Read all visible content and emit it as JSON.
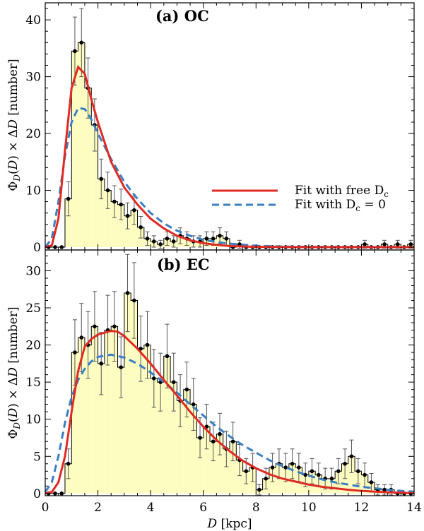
{
  "chart_data": [
    {
      "type": "bar",
      "panel": "top",
      "title": "(a) OC",
      "xlabel": "D [kpc]",
      "ylabel": "Φ_D(D) × ΔD [number]",
      "xlim": [
        0,
        14
      ],
      "ylim": [
        -0.5,
        43
      ],
      "yticks": [
        0,
        10,
        20,
        30,
        40
      ],
      "bin_width": 0.25,
      "centers": [
        0.125,
        0.375,
        0.625,
        0.875,
        1.125,
        1.375,
        1.625,
        1.875,
        2.125,
        2.375,
        2.625,
        2.875,
        3.125,
        3.375,
        3.625,
        3.875,
        4.125,
        4.375,
        4.625,
        4.875,
        5.125,
        5.375,
        5.625,
        5.875,
        6.125,
        6.375,
        6.625,
        6.875,
        7.125,
        7.375,
        7.625,
        7.875,
        8.125,
        8.375,
        8.625,
        8.875,
        9.125,
        9.375,
        9.625,
        9.875,
        10.125,
        10.375,
        10.625,
        10.875,
        11.125,
        11.375,
        11.625,
        11.875,
        12.125,
        12.375,
        12.625,
        12.875,
        13.125,
        13.375,
        13.625,
        13.875
      ],
      "counts": [
        0,
        0,
        0,
        8.5,
        34.5,
        36,
        28,
        21.5,
        12,
        10,
        8,
        7.5,
        5.5,
        6.5,
        3.5,
        1.5,
        1,
        0.5,
        1.5,
        1,
        2,
        1.5,
        1,
        1,
        1.5,
        1.5,
        2,
        1.5,
        0,
        0.5,
        0,
        0,
        0,
        0,
        0,
        0,
        0,
        0,
        0,
        0,
        0,
        0,
        0,
        0,
        0,
        0,
        0,
        0,
        0.5,
        0,
        0,
        0.5,
        0,
        0.5,
        0,
        0.5
      ],
      "errors": [
        0,
        0,
        0,
        3,
        6,
        6,
        5.3,
        4.6,
        3.5,
        3.2,
        2.8,
        2.7,
        2.3,
        2.5,
        1.9,
        1.2,
        1,
        0.7,
        1.2,
        1,
        1.4,
        1.2,
        1,
        1,
        1.2,
        1.2,
        1.4,
        1.2,
        0,
        0.7,
        0,
        0,
        0,
        0,
        0,
        0,
        0,
        0,
        0,
        0,
        0,
        0,
        0,
        0,
        0,
        0,
        0,
        0,
        0.7,
        0,
        0,
        0.7,
        0,
        0.7,
        0,
        0.7
      ],
      "fit_free_dc": [
        [
          0,
          0
        ],
        [
          0.25,
          0.3
        ],
        [
          0.5,
          5
        ],
        [
          0.75,
          17
        ],
        [
          1,
          28
        ],
        [
          1.25,
          31.7
        ],
        [
          1.5,
          30.5
        ],
        [
          1.75,
          26
        ],
        [
          2,
          22
        ],
        [
          2.5,
          15
        ],
        [
          3,
          10.5
        ],
        [
          3.5,
          7.5
        ],
        [
          4,
          5
        ],
        [
          4.5,
          3.3
        ],
        [
          5,
          2
        ],
        [
          5.5,
          1.2
        ],
        [
          6,
          0.7
        ],
        [
          6.5,
          0.4
        ],
        [
          7,
          0.2
        ],
        [
          8,
          0.05
        ],
        [
          10,
          0
        ],
        [
          14,
          0
        ]
      ],
      "fit_dc0": [
        [
          0,
          0
        ],
        [
          0.25,
          1.5
        ],
        [
          0.5,
          8
        ],
        [
          0.75,
          16
        ],
        [
          1,
          22
        ],
        [
          1.25,
          24.5
        ],
        [
          1.5,
          24.3
        ],
        [
          1.75,
          22.5
        ],
        [
          2,
          20
        ],
        [
          2.5,
          15.5
        ],
        [
          3,
          11.5
        ],
        [
          3.5,
          8.5
        ],
        [
          4,
          6
        ],
        [
          4.5,
          4.2
        ],
        [
          5,
          2.9
        ],
        [
          5.5,
          2
        ],
        [
          6,
          1.3
        ],
        [
          6.5,
          0.9
        ],
        [
          7,
          0.6
        ],
        [
          8,
          0.25
        ],
        [
          9,
          0.1
        ],
        [
          10,
          0.05
        ],
        [
          14,
          0
        ]
      ],
      "legend": [
        "Fit with free D_c",
        "Fit with D_c = 0"
      ],
      "legend_position": "center-right"
    },
    {
      "type": "bar",
      "panel": "bottom",
      "title": "(b) EC",
      "xlabel": "D [kpc]",
      "ylabel": "Φ_D(D) × ΔD [number]",
      "xlim": [
        0,
        14
      ],
      "ylim": [
        -0.3,
        32.8
      ],
      "yticks": [
        0,
        5,
        10,
        15,
        20,
        25,
        30
      ],
      "xticks": [
        0,
        2,
        4,
        6,
        8,
        10,
        12,
        14
      ],
      "bin_width": 0.25,
      "centers": [
        0.125,
        0.375,
        0.625,
        0.875,
        1.125,
        1.375,
        1.625,
        1.875,
        2.125,
        2.375,
        2.625,
        2.875,
        3.125,
        3.375,
        3.625,
        3.875,
        4.125,
        4.375,
        4.625,
        4.875,
        5.125,
        5.375,
        5.625,
        5.875,
        6.125,
        6.375,
        6.625,
        6.875,
        7.125,
        7.375,
        7.625,
        7.875,
        8.125,
        8.375,
        8.625,
        8.875,
        9.125,
        9.375,
        9.625,
        9.875,
        10.125,
        10.375,
        10.625,
        10.875,
        11.125,
        11.375,
        11.625,
        11.875,
        12.125,
        12.375,
        12.625,
        12.875,
        13.125,
        13.375,
        13.625,
        13.875
      ],
      "counts": [
        0,
        0,
        0,
        4,
        19,
        21,
        20,
        22.5,
        17.5,
        22,
        22.5,
        17,
        27,
        26,
        19.5,
        20,
        15.5,
        15,
        18.5,
        15,
        12.5,
        14,
        12,
        7.5,
        9,
        7,
        8,
        6,
        7,
        4.5,
        3,
        3.5,
        0.5,
        2,
        3.5,
        4,
        3.5,
        4,
        3.5,
        2.5,
        3,
        2.5,
        2,
        2,
        3,
        4,
        5,
        3,
        2.5,
        1.5,
        0.5,
        0.5,
        0.5,
        0,
        0,
        0
      ],
      "errors": [
        0,
        0,
        0,
        2,
        4.4,
        4.6,
        4.5,
        4.7,
        4.2,
        4.7,
        4.7,
        4.1,
        5.2,
        5.1,
        4.4,
        4.5,
        3.9,
        3.9,
        4.3,
        3.9,
        3.5,
        3.7,
        3.5,
        2.7,
        3,
        2.6,
        2.8,
        2.4,
        2.6,
        2.1,
        1.7,
        1.9,
        0.7,
        1.4,
        1.9,
        2,
        1.9,
        2,
        1.9,
        1.6,
        1.7,
        1.6,
        1.4,
        1.4,
        1.7,
        2,
        2.2,
        1.7,
        1.6,
        1.2,
        0.7,
        0.7,
        0.7,
        0,
        0,
        0
      ],
      "fit_free_dc": [
        [
          0,
          0
        ],
        [
          0.25,
          0.2
        ],
        [
          0.5,
          1.5
        ],
        [
          0.75,
          5
        ],
        [
          1,
          11
        ],
        [
          1.25,
          16.5
        ],
        [
          1.5,
          19.8
        ],
        [
          1.75,
          20.8
        ],
        [
          2,
          21.4
        ],
        [
          2.5,
          21.9
        ],
        [
          2.75,
          21.8
        ],
        [
          3,
          21.2
        ],
        [
          3.5,
          19.5
        ],
        [
          4,
          17.5
        ],
        [
          4.5,
          15.3
        ],
        [
          5,
          13.2
        ],
        [
          5.5,
          11
        ],
        [
          6,
          9
        ],
        [
          6.5,
          7.2
        ],
        [
          7,
          5.7
        ],
        [
          7.5,
          4.4
        ],
        [
          8,
          3.4
        ],
        [
          8.5,
          2.6
        ],
        [
          9,
          2
        ],
        [
          9.5,
          1.6
        ],
        [
          10,
          1.2
        ],
        [
          10.5,
          0.9
        ],
        [
          11,
          0.7
        ],
        [
          11.5,
          0.5
        ],
        [
          12,
          0.35
        ],
        [
          12.5,
          0.25
        ],
        [
          13,
          0.15
        ],
        [
          13.5,
          0.1
        ],
        [
          14,
          0.05
        ]
      ],
      "fit_dc0": [
        [
          0,
          0.2
        ],
        [
          0.25,
          1.5
        ],
        [
          0.5,
          5
        ],
        [
          0.75,
          9.5
        ],
        [
          1,
          13
        ],
        [
          1.25,
          15.3
        ],
        [
          1.5,
          16.8
        ],
        [
          1.75,
          17.8
        ],
        [
          2,
          18.4
        ],
        [
          2.5,
          18.7
        ],
        [
          3,
          18.3
        ],
        [
          3.5,
          17.5
        ],
        [
          4,
          16.3
        ],
        [
          4.5,
          15
        ],
        [
          5,
          13.6
        ],
        [
          5.5,
          12
        ],
        [
          6,
          10.5
        ],
        [
          6.5,
          9
        ],
        [
          7,
          7.7
        ],
        [
          7.5,
          6.5
        ],
        [
          8,
          5.5
        ],
        [
          8.5,
          4.5
        ],
        [
          9,
          3.7
        ],
        [
          9.5,
          3
        ],
        [
          10,
          2.4
        ],
        [
          10.5,
          1.9
        ],
        [
          11,
          1.5
        ],
        [
          11.5,
          1.2
        ],
        [
          12,
          0.9
        ],
        [
          12.5,
          0.7
        ],
        [
          13,
          0.5
        ],
        [
          13.5,
          0.35
        ],
        [
          14,
          0.25
        ]
      ]
    }
  ],
  "legend": {
    "free_dc": "Fit with free D",
    "dc0_prefix": "Fit with D",
    "dc0_suffix": " = 0",
    "sub": "c"
  },
  "colors": {
    "hist_fill": "#fdfdc1",
    "hist_edge": "#000000",
    "fit_free_dc": "#e02a24",
    "fit_dc0": "#3a7fc1"
  }
}
